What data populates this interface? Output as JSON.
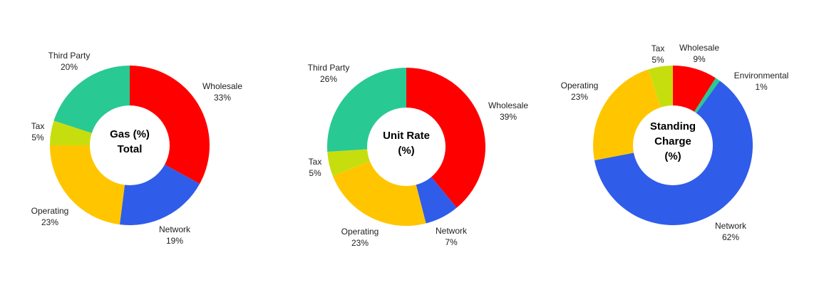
{
  "chart_data": [
    {
      "type": "pie",
      "donut": true,
      "title": "Gas (%) Total",
      "center_lines": [
        "Gas (%)",
        "Total"
      ],
      "unit": "%",
      "slices": [
        {
          "name": "Wholesale",
          "value": 33,
          "color": "#ff0000"
        },
        {
          "name": "Network",
          "value": 19,
          "color": "#2f5ce9"
        },
        {
          "name": "Operating",
          "value": 23,
          "color": "#ffc600"
        },
        {
          "name": "Tax",
          "value": 5,
          "color": "#c7de0e"
        },
        {
          "name": "Third Party",
          "value": 20,
          "color": "#29c993"
        }
      ]
    },
    {
      "type": "pie",
      "donut": true,
      "title": "Unit Rate (%)",
      "center_lines": [
        "Unit Rate",
        "(%)"
      ],
      "unit": "%",
      "slices": [
        {
          "name": "Wholesale",
          "value": 39,
          "color": "#ff0000"
        },
        {
          "name": "Network",
          "value": 7,
          "color": "#2f5ce9"
        },
        {
          "name": "Operating",
          "value": 23,
          "color": "#ffc600"
        },
        {
          "name": "Tax",
          "value": 5,
          "color": "#c7de0e"
        },
        {
          "name": "Third Party",
          "value": 26,
          "color": "#29c993"
        }
      ]
    },
    {
      "type": "pie",
      "donut": true,
      "title": "Standing Charge (%)",
      "center_lines": [
        "Standing",
        "Charge",
        "(%)"
      ],
      "unit": "%",
      "slices": [
        {
          "name": "Wholesale",
          "value": 9,
          "color": "#ff0000"
        },
        {
          "name": "Environmental",
          "value": 1,
          "color": "#29c993"
        },
        {
          "name": "Network",
          "value": 62,
          "color": "#2f5ce9"
        },
        {
          "name": "Operating",
          "value": 23,
          "color": "#ffc600"
        },
        {
          "name": "Tax",
          "value": 5,
          "color": "#c7de0e"
        }
      ]
    }
  ]
}
